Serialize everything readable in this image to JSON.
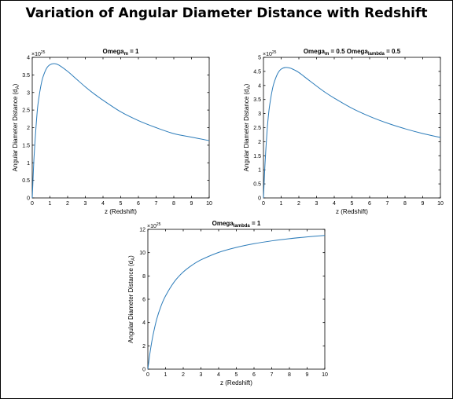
{
  "title": "Variation of Angular Diameter Distance with Redshift",
  "style": {
    "line_color": "#2b7bb9"
  },
  "chart_data": [
    {
      "type": "line",
      "title_parts": [
        {
          "t": "Omega"
        },
        {
          "t": "m",
          "sub": true
        },
        {
          "t": " = 1"
        }
      ],
      "xlabel": "z (Redshift)",
      "ylabel": "Angular Diameter Distance (d_A)",
      "ylabel_parts": [
        {
          "t": "Angular Diameter Distance (d"
        },
        {
          "t": "A",
          "sub": true
        },
        {
          "t": ")"
        }
      ],
      "y_multiplier": "×10",
      "y_multiplier_exp": "25",
      "xlim": [
        0,
        10
      ],
      "ylim": [
        0,
        4
      ],
      "xticks": [
        0,
        1,
        2,
        3,
        4,
        5,
        6,
        7,
        8,
        9,
        10
      ],
      "yticks": [
        0,
        0.5,
        1,
        1.5,
        2,
        2.5,
        3,
        3.5,
        4
      ],
      "series": [
        {
          "x": [
            0,
            0.05,
            0.1,
            0.2,
            0.3,
            0.4,
            0.5,
            0.6,
            0.8,
            1.0,
            1.25,
            1.5,
            2,
            2.5,
            3,
            3.5,
            4,
            5,
            6,
            7,
            8,
            9,
            10
          ],
          "values": [
            0,
            0.6,
            1.15,
            1.93,
            2.56,
            2.93,
            3.22,
            3.43,
            3.68,
            3.79,
            3.82,
            3.78,
            3.6,
            3.38,
            3.16,
            2.96,
            2.78,
            2.45,
            2.2,
            2.0,
            1.83,
            1.73,
            1.63
          ]
        }
      ]
    },
    {
      "type": "line",
      "title_parts": [
        {
          "t": "Omega"
        },
        {
          "t": "m",
          "sub": true
        },
        {
          "t": " = 0.5   Omega"
        },
        {
          "t": "lambda",
          "sub": true
        },
        {
          "t": " = 0.5"
        }
      ],
      "xlabel": "z (Redshift)",
      "ylabel": "Angular Diameter Distance (d_A)",
      "ylabel_parts": [
        {
          "t": "Angular Diameter Distance (d"
        },
        {
          "t": "A",
          "sub": true
        },
        {
          "t": ")"
        }
      ],
      "y_multiplier": "×10",
      "y_multiplier_exp": "25",
      "xlim": [
        0,
        10
      ],
      "ylim": [
        0,
        5
      ],
      "xticks": [
        0,
        1,
        2,
        3,
        4,
        5,
        6,
        7,
        8,
        9,
        10
      ],
      "yticks": [
        0,
        0.5,
        1,
        1.5,
        2,
        2.5,
        3,
        3.5,
        4,
        4.5,
        5
      ],
      "series": [
        {
          "x": [
            0,
            0.05,
            0.1,
            0.2,
            0.3,
            0.4,
            0.5,
            0.6,
            0.8,
            1.0,
            1.25,
            1.5,
            1.75,
            2,
            2.5,
            3,
            3.5,
            4,
            5,
            6,
            7,
            8,
            9,
            10
          ],
          "values": [
            0,
            0.72,
            1.35,
            2.35,
            3.05,
            3.5,
            3.85,
            4.1,
            4.42,
            4.58,
            4.64,
            4.62,
            4.55,
            4.46,
            4.22,
            3.98,
            3.75,
            3.55,
            3.19,
            2.9,
            2.66,
            2.46,
            2.29,
            2.15
          ]
        }
      ]
    },
    {
      "type": "line",
      "title_parts": [
        {
          "t": "Omega"
        },
        {
          "t": "lambda",
          "sub": true
        },
        {
          "t": " = 1"
        }
      ],
      "xlabel": "z (Redshift)",
      "ylabel": "Angular Diameter Distance (d_A)",
      "ylabel_parts": [
        {
          "t": "Angular Diameter Distance (d"
        },
        {
          "t": "A",
          "sub": true
        },
        {
          "t": ")"
        }
      ],
      "y_multiplier": "×10",
      "y_multiplier_exp": "25",
      "xlim": [
        0,
        10
      ],
      "ylim": [
        0,
        12
      ],
      "xticks": [
        0,
        1,
        2,
        3,
        4,
        5,
        6,
        7,
        8,
        9,
        10
      ],
      "yticks": [
        0,
        2,
        4,
        6,
        8,
        10,
        12
      ],
      "series": [
        {
          "x": [
            0,
            0.1,
            0.2,
            0.3,
            0.5,
            0.75,
            1.0,
            1.5,
            2,
            2.5,
            3,
            4,
            5,
            6,
            7,
            8,
            9,
            10
          ],
          "values": [
            0,
            1.18,
            2.16,
            2.98,
            4.29,
            5.44,
            6.29,
            7.51,
            8.34,
            8.93,
            9.38,
            10.02,
            10.45,
            10.77,
            11.01,
            11.2,
            11.35,
            11.48
          ]
        }
      ]
    }
  ]
}
